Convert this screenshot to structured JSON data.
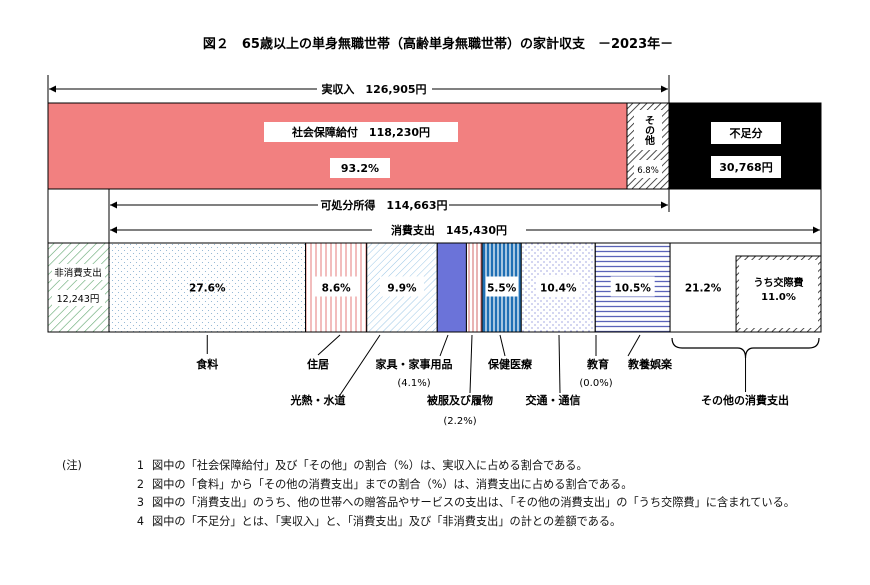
{
  "chart_data": {
    "type": "bar",
    "title": "図２　65歳以上の単身無職世帯（高齢単身無職世帯）の家計収支　－2023年－",
    "income_bar": {
      "bracket_label": "実収入　126,905円",
      "segments": [
        {
          "name": "社会保障給付",
          "value_label": "社会保障給付　118,230円",
          "percent": 93.2,
          "percent_label": "93.2%",
          "color": "#f28080"
        },
        {
          "name": "その他",
          "label": "その他",
          "percent": 6.8,
          "percent_label": "6.8%",
          "color": "#ffffff"
        },
        {
          "name": "不足分",
          "label": "不足分",
          "value": 30768,
          "value_label": "30,768円",
          "color": "#000000"
        }
      ]
    },
    "disposable_income_label": "可処分所得　114,663円",
    "consumption_label": "消費支出　145,430円",
    "non_consumption": {
      "label": "非消費支出",
      "value_label": "12,243円",
      "value": 12243
    },
    "consumption_segments": [
      {
        "name": "食料",
        "percent": 27.6,
        "percent_label": "27.6%"
      },
      {
        "name": "住居",
        "percent": 8.6,
        "percent_label": "8.6%"
      },
      {
        "name": "光熱・水道",
        "percent": 9.9,
        "percent_label": "9.9%"
      },
      {
        "name": "家具・家事用品",
        "percent": 4.1,
        "percent_label": "(4.1%)"
      },
      {
        "name": "被服及び履物",
        "percent": 2.2,
        "percent_label": "(2.2%)"
      },
      {
        "name": "保健医療",
        "percent": 5.5,
        "percent_label": "5.5%"
      },
      {
        "name": "交通・通信",
        "percent": 10.4,
        "percent_label": "10.4%"
      },
      {
        "name": "教育",
        "percent": 0.0,
        "percent_label": "(0.0%)"
      },
      {
        "name": "教養娯楽",
        "percent": 10.5,
        "percent_label": "10.5%"
      },
      {
        "name": "その他の消費支出",
        "percent": 21.2,
        "percent_label": "21.2%",
        "sub_label": "うち交際費",
        "sub_percent": 11.0,
        "sub_percent_label": "11.0%"
      }
    ]
  },
  "notes": {
    "lead": "(注)",
    "items": [
      {
        "num": "1",
        "text": "図中の「社会保障給付」及び「その他」の割合（%）は、実収入に占める割合である。"
      },
      {
        "num": "2",
        "text": "図中の「食料」から「その他の消費支出」までの割合（%）は、消費支出に占める割合である。"
      },
      {
        "num": "3",
        "text": "図中の「消費支出」のうち、他の世帯への贈答品やサービスの支出は、「その他の消費支出」の「うち交際費」に含まれている。"
      },
      {
        "num": "4",
        "text": "図中の「不足分」とは、「実収入」と、「消費支出」及び「非消費支出」の計との差額である。"
      }
    ]
  }
}
